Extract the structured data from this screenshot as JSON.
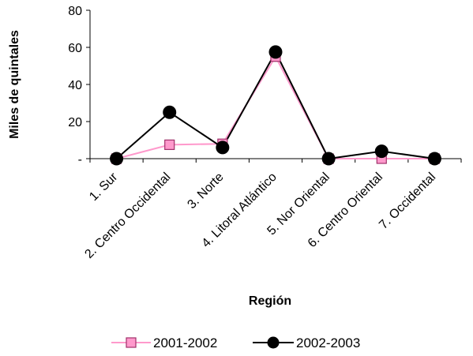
{
  "chart_data": {
    "type": "line",
    "xlabel": "Región",
    "ylabel": "Miles de quintales",
    "ylim": [
      0,
      80
    ],
    "y_ticks": [
      {
        "value": 0,
        "label": "-"
      },
      {
        "value": 20,
        "label": "20"
      },
      {
        "value": 40,
        "label": "40"
      },
      {
        "value": 60,
        "label": "60"
      },
      {
        "value": 80,
        "label": "80"
      }
    ],
    "grid": false,
    "legend_position": "bottom",
    "categories": [
      "1.  Sur",
      "2.  Centro Occidental",
      "3.  Norte",
      "4.  Litoral Atlántico",
      "5.  Nor Oriental",
      "6.  Centro Oriental",
      "7.  Occidental"
    ],
    "series": [
      {
        "name": "2001-2002",
        "marker": "square",
        "color": "#ff99cc",
        "marker_stroke": "#a0306a",
        "values": [
          0,
          7.5,
          8,
          55,
          0,
          0,
          0
        ]
      },
      {
        "name": "2002-2003",
        "marker": "circle",
        "color": "#000000",
        "marker_stroke": "#000000",
        "values": [
          0,
          25,
          6,
          57.5,
          0,
          4,
          0
        ]
      }
    ]
  }
}
